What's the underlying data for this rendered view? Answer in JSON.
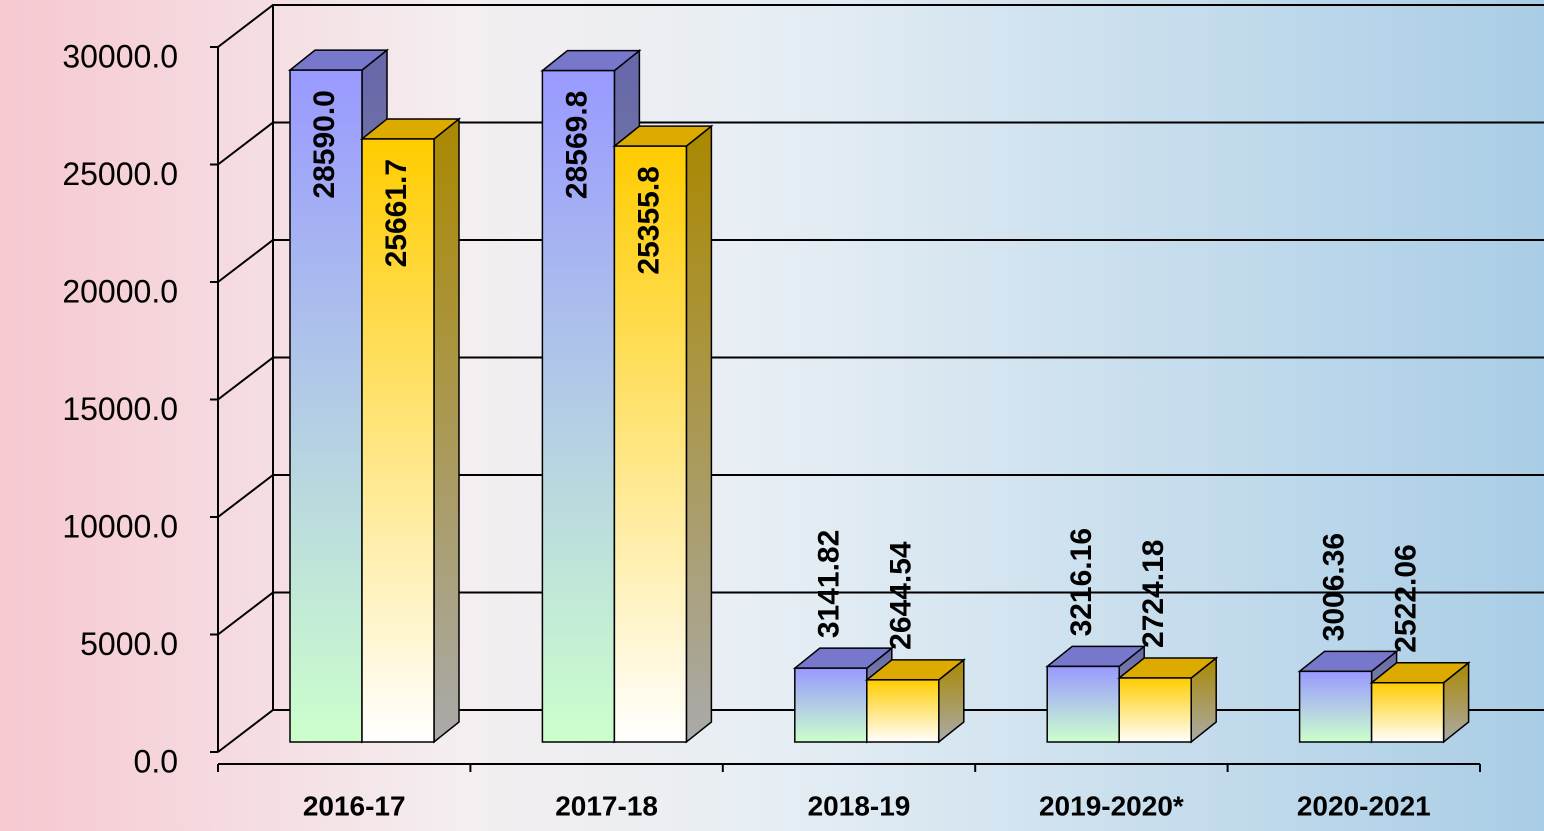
{
  "chart_data": {
    "type": "bar3d",
    "categories": [
      "2016-17",
      "2017-18",
      "2018-19",
      "2019-2020*",
      "2020-2021"
    ],
    "series": [
      {
        "color": "#9999ff",
        "values": [
          28590,
          28569.8,
          3141.82,
          3216.16,
          3006.36
        ],
        "value_labels": [
          "28590.0",
          "28569.8",
          "3141.82",
          "3216.16",
          "3006.36"
        ]
      },
      {
        "color": "#ffcc00",
        "values": [
          25661.7,
          25355.8,
          2644.54,
          2724.18,
          2522.06
        ]
      }
    ],
    "ylim": [
      0,
      30000
    ],
    "yticks": [
      {
        "value": 0,
        "label": "0.0"
      },
      {
        "value": 5000,
        "label": "5000.0"
      },
      {
        "value": 10000,
        "label": "10000.0"
      },
      {
        "value": 15000,
        "label": "15000.0"
      },
      {
        "value": 20000,
        "label": "20000.0"
      },
      {
        "value": 25000,
        "label": "25000.0"
      },
      {
        "value": 30000,
        "label": "30000.0"
      }
    ],
    "grid": true
  }
}
